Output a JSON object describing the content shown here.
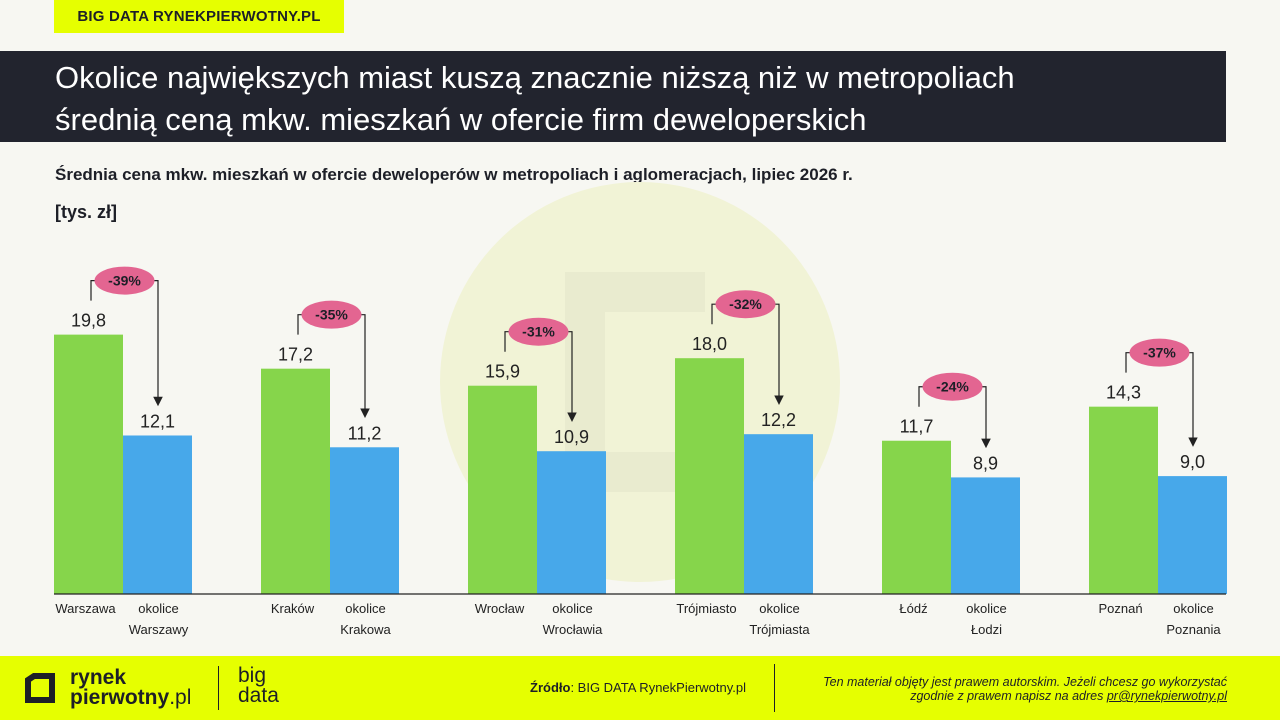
{
  "header": {
    "tag": "BIG DATA RYNEKPIERWOTNY.PL",
    "title_line1": "Okolice największych miast kuszą znacznie niższą niż w metropoliach",
    "title_line2": "średnią ceną mkw. mieszkań w ofercie firm deweloperskich"
  },
  "chart_data": {
    "type": "bar",
    "title": "Średnia cena mkw. mieszkań w ofercie deweloperów w metropoliach i aglomeracjach, lipiec 2026 r.",
    "unit": "[tys. zł]",
    "groups": [
      {
        "city": "Warszawa",
        "suburb_l1": "okolice",
        "suburb_l2": "Warszawy",
        "city_value": 19.8,
        "suburb_value": 12.1,
        "city_label": "19,8",
        "suburb_label": "12,1",
        "diff": "-39%"
      },
      {
        "city": "Kraków",
        "suburb_l1": "okolice",
        "suburb_l2": "Krakowa",
        "city_value": 17.2,
        "suburb_value": 11.2,
        "city_label": "17,2",
        "suburb_label": "11,2",
        "diff": "-35%"
      },
      {
        "city": "Wrocław",
        "suburb_l1": "okolice",
        "suburb_l2": "Wrocławia",
        "city_value": 15.9,
        "suburb_value": 10.9,
        "city_label": "15,9",
        "suburb_label": "10,9",
        "diff": "-31%"
      },
      {
        "city": "Trójmiasto",
        "suburb_l1": "okolice",
        "suburb_l2": "Trójmiasta",
        "city_value": 18.0,
        "suburb_value": 12.2,
        "city_label": "18,0",
        "suburb_label": "12,2",
        "diff": "-32%"
      },
      {
        "city": "Łódź",
        "suburb_l1": "okolice",
        "suburb_l2": "Łodzi",
        "city_value": 11.7,
        "suburb_value": 8.9,
        "city_label": "11,7",
        "suburb_label": "8,9",
        "diff": "-24%"
      },
      {
        "city": "Poznań",
        "suburb_l1": "okolice",
        "suburb_l2": "Poznania",
        "city_value": 14.3,
        "suburb_value": 9.0,
        "city_label": "14,3",
        "suburb_label": "9,0",
        "diff": "-37%"
      }
    ],
    "ylim": [
      0,
      23.5
    ],
    "colors": {
      "city": "#86d54b",
      "suburb": "#47a8ea",
      "badge": "#e36591",
      "axis": "#222222"
    }
  },
  "footer": {
    "logo_line1": "rynek",
    "logo_line2a": "pierwotny",
    "logo_line2b": ".pl",
    "bigdata_line1": "big",
    "bigdata_line2": "data",
    "source_label": "Źródło",
    "source_text": ": BIG DATA RynekPierwotny.pl",
    "copyright_line1": "Ten materiał objęty jest prawem autorskim. Jeżeli chcesz go wykorzystać",
    "copyright_line2": "zgodnie z prawem napisz na adres ",
    "copyright_email": "pr@rynekpierwotny.pl"
  }
}
